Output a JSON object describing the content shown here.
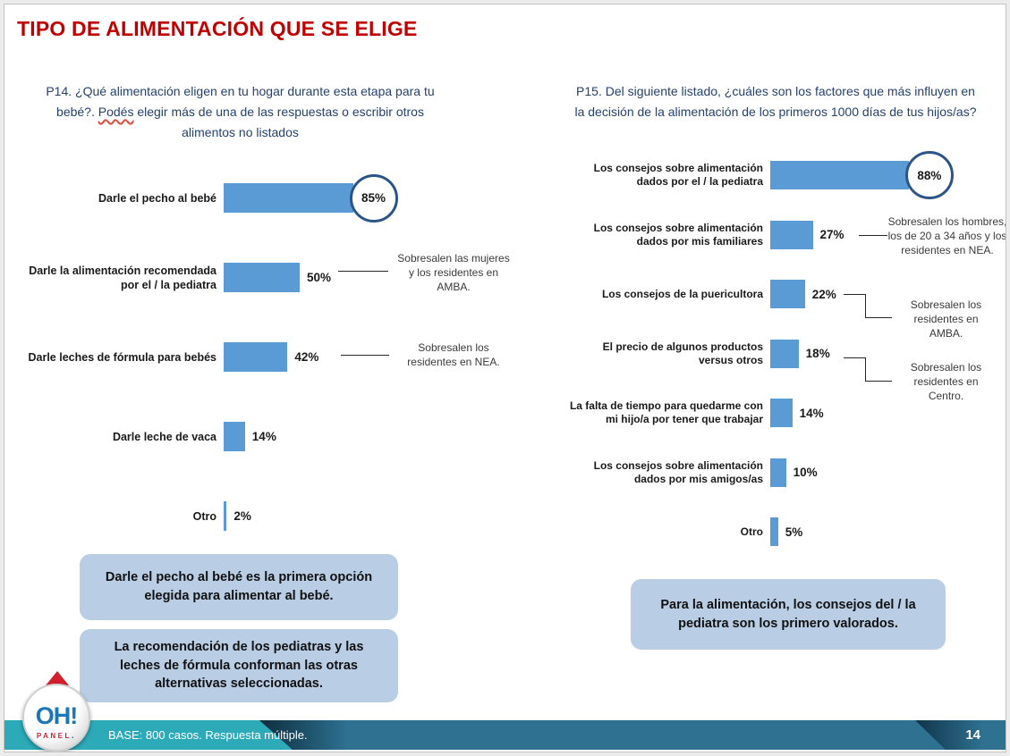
{
  "slide": {
    "title": "TIPO DE ALIMENTACIÓN QUE SE ELIGE",
    "footer_note": "BASE: 800 casos. Respuesta múltiple.",
    "page_number": "14",
    "logo": {
      "main": "OH!",
      "sub": "PANEL",
      "dot": "!"
    }
  },
  "colors": {
    "title_red": "#C00000",
    "question_navy": "#24416E",
    "bar_blue": "#5B9BD5",
    "circle_border": "#2a5586",
    "callout_bg": "#B9CDE5",
    "footer_teal": "#2CAAB8",
    "footer_steel": "#2E7191"
  },
  "chart_data": [
    {
      "type": "bar",
      "orientation": "horizontal",
      "title": "P14. ¿Qué alimentación eligen en tu hogar durante esta etapa para tu bebé?. Podés elegir más de una de las respuestas o escribir otros alimentos no listados",
      "title_parts": {
        "pre": "P14. ¿Qué alimentación eligen en tu hogar durante esta etapa para tu bebé?. ",
        "misspelled": "Podés",
        "post": " elegir más de una de las respuestas o escribir otros alimentos no listados"
      },
      "categories": [
        "Darle el pecho al bebé",
        "Darle la alimentación recomendada por el / la pediatra",
        "Darle leches de fórmula para bebés",
        "Darle leche de vaca",
        "Otro"
      ],
      "values": [
        85,
        50,
        42,
        14,
        2
      ],
      "value_labels": [
        "85%",
        "50%",
        "42%",
        "14%",
        "2%"
      ],
      "highlighted_index": 0,
      "xlim": [
        0,
        100
      ],
      "unit": "%",
      "annotations": [
        {
          "text": "Sobresalen las mujeres y los residentes en AMBA.",
          "target": "Darle la alimentación recomendada por el / la pediatra"
        },
        {
          "text": "Sobresalen los residentes en NEA.",
          "target": "Darle leches de fórmula para bebés"
        }
      ],
      "callouts": [
        "Darle el pecho al bebé es la primera opción elegida para alimentar al bebé.",
        "La recomendación de los pediatras y las leches de fórmula conforman las otras alternativas seleccionadas."
      ]
    },
    {
      "type": "bar",
      "orientation": "horizontal",
      "title": "P15. Del siguiente listado, ¿cuáles son los factores que más influyen en la decisión de la alimentación de los primeros 1000 días de tus hijos/as?",
      "categories": [
        "Los consejos sobre alimentación dados por el / la pediatra",
        "Los consejos sobre alimentación dados por mis familiares",
        "Los consejos de la puericultora",
        "El precio de algunos productos versus otros",
        "La falta de tiempo para quedarme con mi hijo/a por tener que trabajar",
        "Los consejos sobre alimentación dados por mis amigos/as",
        "Otro"
      ],
      "values": [
        88,
        27,
        22,
        18,
        14,
        10,
        5
      ],
      "value_labels": [
        "88%",
        "27%",
        "22%",
        "18%",
        "14%",
        "10%",
        "5%"
      ],
      "highlighted_index": 0,
      "xlim": [
        0,
        100
      ],
      "unit": "%",
      "annotations": [
        {
          "text": "Sobresalen los hombres, los de 20 a 34 años y los residentes en NEA.",
          "target": "Los consejos sobre alimentación dados por mis familiares"
        },
        {
          "text": "Sobresalen los residentes en AMBA.",
          "target": "Los consejos de la puericultora"
        },
        {
          "text": "Sobresalen los residentes en Centro.",
          "target": "El precio de algunos productos versus otros"
        }
      ],
      "callouts": [
        "Para la alimentación, los consejos del / la pediatra son los primero valorados."
      ]
    }
  ]
}
